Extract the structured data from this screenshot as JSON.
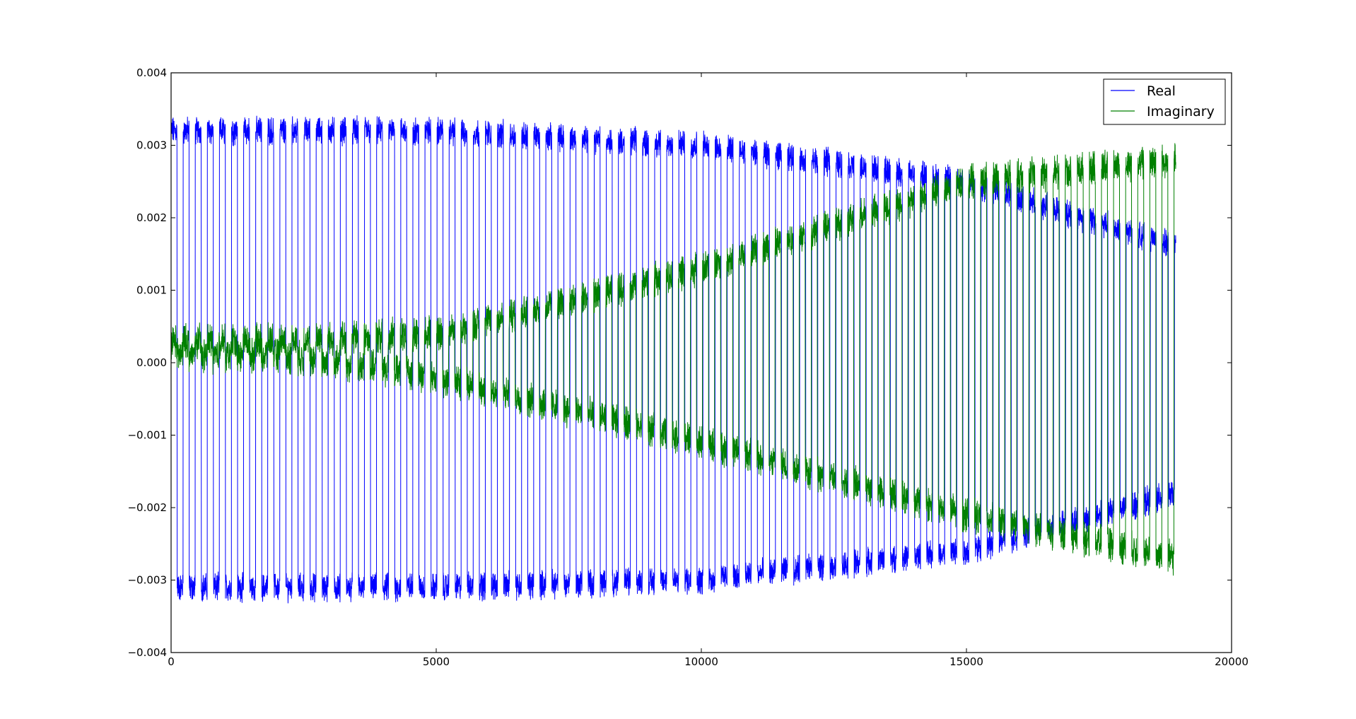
{
  "chart_data": {
    "type": "line",
    "title": "",
    "xlabel": "",
    "ylabel": "",
    "xlim": [
      0,
      20000
    ],
    "ylim": [
      -0.004,
      0.004
    ],
    "x_ticks": [
      0,
      5000,
      10000,
      15000,
      20000
    ],
    "x_tick_labels": [
      "0",
      "5000",
      "10000",
      "15000",
      "20000"
    ],
    "y_ticks": [
      0.004,
      0.003,
      0.002,
      0.001,
      0.0,
      -0.001,
      -0.002,
      -0.003,
      -0.004
    ],
    "y_tick_labels": [
      "0.004",
      "0.003",
      "0.002",
      "0.001",
      "0.000",
      "−0.001",
      "−0.002",
      "−0.003",
      "−0.004"
    ],
    "grid": false,
    "legend_position": "top-right",
    "n_points": 18950,
    "series": [
      {
        "name": "Real",
        "color": "#0000ff",
        "description": "square-wave-like oscillation between upper and lower levels with noise",
        "x_knots": [
          0,
          5000,
          10000,
          15000,
          18950
        ],
        "upper_level": [
          0.0032,
          0.0032,
          0.003,
          0.0025,
          0.0016
        ],
        "lower_level": [
          -0.0031,
          -0.0031,
          -0.003,
          -0.0026,
          -0.0018
        ],
        "period": 228,
        "noise": 0.00015
      },
      {
        "name": "Imaginary",
        "color": "#008000",
        "description": "oscillation whose amplitude grows from near zero to large",
        "x_knots": [
          0,
          2000,
          5000,
          10000,
          15000,
          18950
        ],
        "upper_level": [
          0.0003,
          0.0003,
          0.0004,
          0.0013,
          0.0025,
          0.0028
        ],
        "lower_level": [
          0.0001,
          0.0001,
          -0.0002,
          -0.0011,
          -0.0021,
          -0.0027
        ],
        "period": 228,
        "noise": 0.00018
      }
    ]
  },
  "legend": {
    "items": [
      {
        "label": "Real",
        "color": "#0000ff"
      },
      {
        "label": "Imaginary",
        "color": "#008000"
      }
    ]
  }
}
